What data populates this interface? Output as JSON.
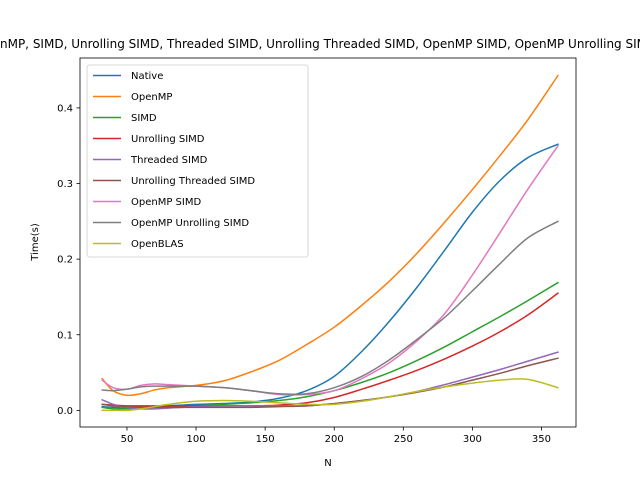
{
  "chart_data": {
    "type": "line",
    "title": "Native, OpenMP, SIMD, Unrolling SIMD, Threaded SIMD, Unrolling Threaded SIMD, OpenMP SIMD, OpenMP Unrolling SIMD, OpenBLAS",
    "xlabel": "N",
    "ylabel": "Time(s)",
    "xlim": [
      16,
      375
    ],
    "ylim": [
      -0.022,
      0.466
    ],
    "xticks": [
      50,
      100,
      150,
      200,
      250,
      300,
      350
    ],
    "yticks": [
      0.0,
      0.1,
      0.2,
      0.3,
      0.4
    ],
    "ytick_labels": [
      "0.0",
      "0.1",
      "0.2",
      "0.3",
      "0.4"
    ],
    "grid": false,
    "legend_position": "top-left",
    "x": [
      32,
      40,
      50,
      60,
      70,
      80,
      100,
      120,
      140,
      160,
      180,
      200,
      220,
      240,
      260,
      280,
      300,
      320,
      340,
      362
    ],
    "series": [
      {
        "name": "Native",
        "color": "#1f77b4",
        "values": [
          0.005,
          0.004,
          0.003,
          0.004,
          0.005,
          0.006,
          0.008,
          0.009,
          0.011,
          0.016,
          0.026,
          0.045,
          0.078,
          0.118,
          0.163,
          0.212,
          0.262,
          0.304,
          0.334,
          0.352
        ]
      },
      {
        "name": "OpenMP",
        "color": "#ff7f0e",
        "values": [
          0.042,
          0.026,
          0.02,
          0.022,
          0.027,
          0.03,
          0.033,
          0.039,
          0.051,
          0.066,
          0.087,
          0.11,
          0.139,
          0.171,
          0.208,
          0.249,
          0.292,
          0.337,
          0.384,
          0.443
        ]
      },
      {
        "name": "SIMD",
        "color": "#2ca02c",
        "values": [
          0.004,
          0.002,
          0.002,
          0.003,
          0.004,
          0.005,
          0.006,
          0.008,
          0.01,
          0.013,
          0.018,
          0.026,
          0.037,
          0.05,
          0.066,
          0.084,
          0.104,
          0.124,
          0.145,
          0.169
        ]
      },
      {
        "name": "Unrolling SIMD",
        "color": "#d62728",
        "values": [
          0.008,
          0.007,
          0.006,
          0.006,
          0.006,
          0.006,
          0.006,
          0.006,
          0.006,
          0.007,
          0.01,
          0.017,
          0.028,
          0.04,
          0.053,
          0.068,
          0.085,
          0.104,
          0.126,
          0.155
        ]
      },
      {
        "name": "Threaded SIMD",
        "color": "#9467bd",
        "values": [
          0.014,
          0.008,
          0.004,
          0.002,
          0.002,
          0.003,
          0.005,
          0.006,
          0.006,
          0.006,
          0.006,
          0.009,
          0.013,
          0.018,
          0.025,
          0.034,
          0.044,
          0.054,
          0.065,
          0.077
        ]
      },
      {
        "name": "Unrolling Threaded SIMD",
        "color": "#8c564b",
        "values": [
          0.008,
          0.006,
          0.005,
          0.004,
          0.004,
          0.004,
          0.004,
          0.004,
          0.004,
          0.005,
          0.006,
          0.009,
          0.013,
          0.018,
          0.024,
          0.031,
          0.04,
          0.049,
          0.059,
          0.069
        ]
      },
      {
        "name": "OpenMP SIMD",
        "color": "#e377c2",
        "values": [
          0.04,
          0.03,
          0.028,
          0.033,
          0.035,
          0.034,
          0.032,
          0.03,
          0.026,
          0.021,
          0.021,
          0.026,
          0.042,
          0.063,
          0.092,
          0.128,
          0.179,
          0.235,
          0.292,
          0.35
        ]
      },
      {
        "name": "OpenMP Unrolling SIMD",
        "color": "#7f7f7f",
        "values": [
          0.027,
          0.026,
          0.028,
          0.031,
          0.032,
          0.032,
          0.032,
          0.03,
          0.026,
          0.022,
          0.022,
          0.03,
          0.045,
          0.067,
          0.094,
          0.123,
          0.158,
          0.194,
          0.228,
          0.25
        ]
      },
      {
        "name": "OpenBLAS",
        "color": "#bcbd22",
        "values": [
          0.0,
          0.0,
          0.0,
          0.002,
          0.005,
          0.008,
          0.012,
          0.013,
          0.012,
          0.01,
          0.008,
          0.008,
          0.012,
          0.018,
          0.025,
          0.031,
          0.036,
          0.04,
          0.041,
          0.03
        ]
      }
    ]
  }
}
